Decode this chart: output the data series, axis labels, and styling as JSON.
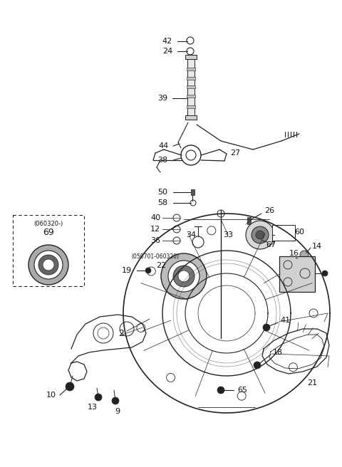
{
  "background_color": "#ffffff",
  "line_color": "#222222",
  "text_color": "#111111",
  "fig_w": 4.8,
  "fig_h": 6.56,
  "dpi": 100
}
